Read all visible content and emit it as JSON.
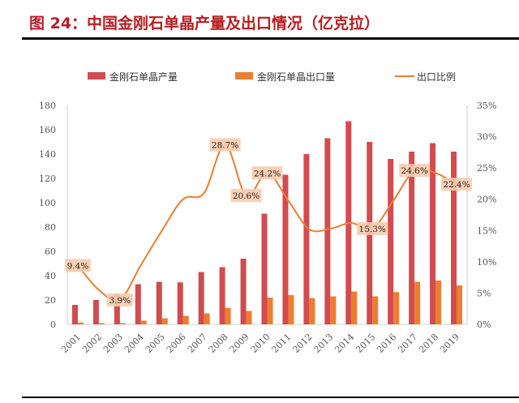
{
  "title": "图 24：中国金刚石单晶产量及出口情况（亿克拉）",
  "chart_data": {
    "type": "bar+line",
    "title": "图 24：中国金刚石单晶产量及出口情况（亿克拉）",
    "categories": [
      "2001",
      "2002",
      "2003",
      "2004",
      "2005",
      "2006",
      "2007",
      "2008",
      "2009",
      "2010",
      "2011",
      "2012",
      "2013",
      "2014",
      "2015",
      "2016",
      "2017",
      "2018",
      "2019"
    ],
    "series": [
      {
        "name": "金刚石单晶产量",
        "type": "bar",
        "axis": "left",
        "color": "#d24b4f",
        "values": [
          16,
          20,
          25,
          33,
          35,
          34.5,
          43,
          47,
          54,
          91,
          123,
          140,
          153,
          167,
          150,
          136,
          142,
          149,
          142
        ]
      },
      {
        "name": "金刚石单晶出口量",
        "type": "bar",
        "axis": "left",
        "color": "#ed7d31",
        "values": [
          1.5,
          1,
          1,
          3,
          5,
          7,
          9,
          13.5,
          11,
          22,
          24,
          21.5,
          23,
          27,
          23,
          26.5,
          35,
          36,
          32
        ]
      },
      {
        "name": "出口比例",
        "type": "line",
        "axis": "right",
        "color": "#ed7d31",
        "unit": "%",
        "values": [
          9.4,
          5.5,
          3.9,
          9.5,
          15,
          20,
          21,
          28.7,
          20.6,
          24.2,
          19.8,
          15.2,
          15.3,
          16.2,
          15.3,
          19.8,
          24.6,
          24.2,
          22.4
        ]
      }
    ],
    "data_labels": [
      {
        "index": 0,
        "text": "9.4%"
      },
      {
        "index": 2,
        "text": "3.9%"
      },
      {
        "index": 7,
        "text": "28.7%"
      },
      {
        "index": 8,
        "text": "20.6%"
      },
      {
        "index": 9,
        "text": "24.2%"
      },
      {
        "index": 14,
        "text": "15.3%"
      },
      {
        "index": 16,
        "text": "24.6%"
      },
      {
        "index": 18,
        "text": "22.4%"
      }
    ],
    "ylim": [
      0,
      180
    ],
    "yticks": [
      "0",
      "20",
      "40",
      "60",
      "80",
      "100",
      "120",
      "140",
      "160",
      "180"
    ],
    "y2lim": [
      0,
      35
    ],
    "y2ticks": [
      "0%",
      "5%",
      "10%",
      "15%",
      "20%",
      "25%",
      "30%",
      "35%"
    ],
    "grid": false,
    "legend": "top"
  }
}
